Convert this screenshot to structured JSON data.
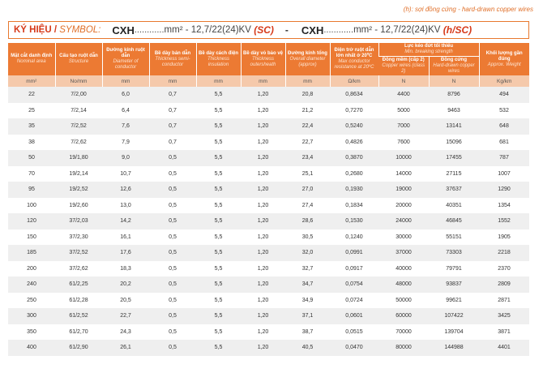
{
  "note": "(h): sợi đồng cứng - hard-drawn copper wires",
  "symbol": {
    "label_vi": "KÝ HIỆU /",
    "label_en": "SYMBOL:",
    "code1": "CXH",
    "rest1": "mm² - 12,7/22(24)KV",
    "suffix1": "(SC)",
    "dash": "-",
    "code2": "CXH",
    "rest2": "mm² - 12,7/22(24)KV",
    "suffix2": "(h/SC)",
    "dots": "............"
  },
  "headers": {
    "nominal": {
      "vi": "Mặt cắt danh định",
      "en": "Nominal area"
    },
    "structure": {
      "vi": "Cấu tạo ruột dẫn",
      "en": "Structure"
    },
    "diameter": {
      "vi": "Đường kính ruột dẫn",
      "en": "Diameter of conductor"
    },
    "semicond": {
      "vi": "Bề dày bán dẫn",
      "en": "Thickness semi-conductor"
    },
    "insulation": {
      "vi": "Bề dày cách điện",
      "en": "Thickness insulation"
    },
    "outersheath": {
      "vi": "Bề dày vỏ bảo vệ",
      "en": "Thickness outersheath"
    },
    "overall": {
      "vi": "Đường kính tổng",
      "en": "Overall diameter (approx)"
    },
    "resistance": {
      "vi": "Điện trở ruột dẫn lớn nhất ở 20ºC",
      "en": "Max conductor resistance at 20ºC"
    },
    "breaking": {
      "vi": "Lực kéo đứt tối thiểu",
      "en": "Min. breaking strength"
    },
    "soft": {
      "vi": "Đồng mềm (cấp 2)",
      "en": "Copper wires (class 2)"
    },
    "hard": {
      "vi": "Đồng cứng",
      "en": "Hard-drawn copper wires"
    },
    "weight": {
      "vi": "Khối lượng gần đúng",
      "en": "Approx. Weight"
    }
  },
  "units": [
    "mm²",
    "No/mm",
    "mm",
    "mm",
    "mm",
    "mm",
    "mm",
    "Ω/km",
    "N",
    "N",
    "Kg/km"
  ],
  "rows": [
    [
      "22",
      "7/2,00",
      "6,0",
      "0,7",
      "5,5",
      "1,20",
      "20,8",
      "0,8634",
      "4400",
      "8796",
      "494"
    ],
    [
      "25",
      "7/2,14",
      "6,4",
      "0,7",
      "5,5",
      "1,20",
      "21,2",
      "0,7270",
      "5000",
      "9463",
      "532"
    ],
    [
      "35",
      "7/2,52",
      "7,6",
      "0,7",
      "5,5",
      "1,20",
      "22,4",
      "0,5240",
      "7000",
      "13141",
      "648"
    ],
    [
      "38",
      "7/2,62",
      "7,9",
      "0,7",
      "5,5",
      "1,20",
      "22,7",
      "0,4826",
      "7600",
      "15096",
      "681"
    ],
    [
      "50",
      "19/1,80",
      "9,0",
      "0,5",
      "5,5",
      "1,20",
      "23,4",
      "0,3870",
      "10000",
      "17455",
      "787"
    ],
    [
      "70",
      "19/2,14",
      "10,7",
      "0,5",
      "5,5",
      "1,20",
      "25,1",
      "0,2680",
      "14000",
      "27115",
      "1007"
    ],
    [
      "95",
      "19/2,52",
      "12,6",
      "0,5",
      "5,5",
      "1,20",
      "27,0",
      "0,1930",
      "19000",
      "37637",
      "1290"
    ],
    [
      "100",
      "19/2,60",
      "13,0",
      "0,5",
      "5,5",
      "1,20",
      "27,4",
      "0,1834",
      "20000",
      "40351",
      "1354"
    ],
    [
      "120",
      "37/2,03",
      "14,2",
      "0,5",
      "5,5",
      "1,20",
      "28,6",
      "0,1530",
      "24000",
      "46845",
      "1552"
    ],
    [
      "150",
      "37/2,30",
      "16,1",
      "0,5",
      "5,5",
      "1,20",
      "30,5",
      "0,1240",
      "30000",
      "55151",
      "1905"
    ],
    [
      "185",
      "37/2,52",
      "17,6",
      "0,5",
      "5,5",
      "1,20",
      "32,0",
      "0,0991",
      "37000",
      "73303",
      "2218"
    ],
    [
      "200",
      "37/2,62",
      "18,3",
      "0,5",
      "5,5",
      "1,20",
      "32,7",
      "0,0917",
      "40000",
      "79791",
      "2370"
    ],
    [
      "240",
      "61/2,25",
      "20,2",
      "0,5",
      "5,5",
      "1,20",
      "34,7",
      "0,0754",
      "48000",
      "93837",
      "2809"
    ],
    [
      "250",
      "61/2,28",
      "20,5",
      "0,5",
      "5,5",
      "1,20",
      "34,9",
      "0,0724",
      "50000",
      "99621",
      "2871"
    ],
    [
      "300",
      "61/2,52",
      "22,7",
      "0,5",
      "5,5",
      "1,20",
      "37,1",
      "0,0601",
      "60000",
      "107422",
      "3425"
    ],
    [
      "350",
      "61/2,70",
      "24,3",
      "0,5",
      "5,5",
      "1,20",
      "38,7",
      "0,0515",
      "70000",
      "139704",
      "3871"
    ],
    [
      "400",
      "61/2,90",
      "26,1",
      "0,5",
      "5,5",
      "1,20",
      "40,5",
      "0,0470",
      "80000",
      "144988",
      "4401"
    ]
  ]
}
